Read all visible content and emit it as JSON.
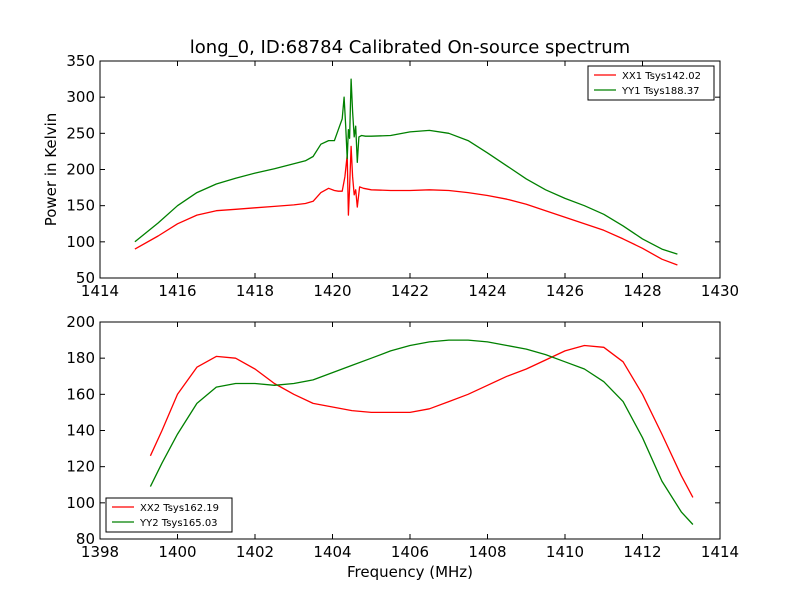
{
  "figure": {
    "title": "long_0, ID:68784 Calibrated On-source spectrum",
    "xlabel": "Frequency (MHz)"
  },
  "chart_data": [
    {
      "type": "line",
      "title": "long_0, ID:68784 Calibrated On-source spectrum",
      "xlabel": "",
      "ylabel": "Power in Kelvin",
      "xlim": [
        1414,
        1430
      ],
      "ylim": [
        50,
        350
      ],
      "xticks": [
        1414,
        1416,
        1418,
        1420,
        1422,
        1424,
        1426,
        1428,
        1430
      ],
      "yticks": [
        50,
        100,
        150,
        200,
        250,
        300,
        350
      ],
      "grid": false,
      "legend": "top-right",
      "series": [
        {
          "name": "XX1 Tsys142.02",
          "color": "#ff0000",
          "x": [
            1414.9,
            1415.5,
            1416,
            1416.5,
            1417,
            1417.5,
            1418,
            1418.5,
            1419,
            1419.3,
            1419.5,
            1419.7,
            1419.9,
            1420.05,
            1420.15,
            1420.25,
            1420.32,
            1420.38,
            1420.41,
            1420.44,
            1420.48,
            1420.52,
            1420.56,
            1420.6,
            1420.64,
            1420.7,
            1420.8,
            1421,
            1421.5,
            1422,
            1422.5,
            1423,
            1423.5,
            1424,
            1424.5,
            1425,
            1425.5,
            1426,
            1426.5,
            1427,
            1427.5,
            1428,
            1428.5,
            1428.9
          ],
          "y": [
            90,
            108,
            125,
            137,
            143,
            145,
            147,
            149,
            151,
            153,
            156,
            168,
            174,
            171,
            170,
            170,
            190,
            220,
            137,
            175,
            232,
            190,
            165,
            172,
            148,
            176,
            174,
            172,
            171,
            171,
            172,
            171,
            168,
            164,
            159,
            152,
            143,
            134,
            125,
            116,
            104,
            91,
            76,
            68
          ]
        },
        {
          "name": "YY1 Tsys188.37",
          "color": "#008000",
          "x": [
            1414.9,
            1415.5,
            1416,
            1416.5,
            1417,
            1417.5,
            1418,
            1418.5,
            1419,
            1419.3,
            1419.5,
            1419.7,
            1419.9,
            1420.05,
            1420.15,
            1420.25,
            1420.3,
            1420.34,
            1420.38,
            1420.41,
            1420.44,
            1420.48,
            1420.52,
            1420.56,
            1420.6,
            1420.64,
            1420.68,
            1420.75,
            1420.85,
            1421,
            1421.5,
            1422,
            1422.5,
            1423,
            1423.5,
            1424,
            1424.5,
            1425,
            1425.5,
            1426,
            1426.5,
            1427,
            1427.5,
            1428,
            1428.5,
            1428.9
          ],
          "y": [
            100,
            126,
            150,
            168,
            180,
            188,
            195,
            201,
            208,
            212,
            218,
            235,
            240,
            240,
            255,
            270,
            300,
            260,
            215,
            255,
            243,
            325,
            280,
            245,
            260,
            210,
            245,
            247,
            246,
            246,
            247,
            252,
            254,
            250,
            240,
            223,
            205,
            187,
            172,
            160,
            150,
            138,
            122,
            104,
            90,
            83
          ]
        }
      ]
    },
    {
      "type": "line",
      "title": "",
      "xlabel": "Frequency (MHz)",
      "ylabel": "",
      "xlim": [
        1398,
        1414
      ],
      "ylim": [
        80,
        200
      ],
      "xticks": [
        1398,
        1400,
        1402,
        1404,
        1406,
        1408,
        1410,
        1412,
        1414
      ],
      "yticks": [
        80,
        100,
        120,
        140,
        160,
        180,
        200
      ],
      "grid": false,
      "legend": "bottom-left",
      "series": [
        {
          "name": "XX2 Tsys162.19",
          "color": "#ff0000",
          "x": [
            1399.3,
            1399.6,
            1400,
            1400.5,
            1401,
            1401.5,
            1402,
            1402.5,
            1403,
            1403.5,
            1404,
            1404.5,
            1405,
            1405.5,
            1406,
            1406.5,
            1407,
            1407.5,
            1408,
            1408.5,
            1409,
            1409.5,
            1410,
            1410.5,
            1411,
            1411.5,
            1412,
            1412.5,
            1413,
            1413.3
          ],
          "y": [
            126,
            140,
            160,
            175,
            181,
            180,
            174,
            166,
            160,
            155,
            153,
            151,
            150,
            150,
            150,
            152,
            156,
            160,
            165,
            170,
            174,
            179,
            184,
            187,
            186,
            178,
            160,
            138,
            115,
            103
          ]
        },
        {
          "name": "YY2 Tsys165.03",
          "color": "#008000",
          "x": [
            1399.3,
            1399.6,
            1400,
            1400.5,
            1401,
            1401.5,
            1402,
            1402.5,
            1403,
            1403.5,
            1404,
            1404.5,
            1405,
            1405.5,
            1406,
            1406.5,
            1407,
            1407.5,
            1408,
            1408.5,
            1409,
            1409.5,
            1410,
            1410.5,
            1411,
            1411.5,
            1412,
            1412.5,
            1413,
            1413.3
          ],
          "y": [
            109,
            122,
            138,
            155,
            164,
            166,
            166,
            165,
            166,
            168,
            172,
            176,
            180,
            184,
            187,
            189,
            190,
            190,
            189,
            187,
            185,
            182,
            178,
            174,
            167,
            156,
            136,
            112,
            95,
            88
          ]
        }
      ]
    }
  ]
}
